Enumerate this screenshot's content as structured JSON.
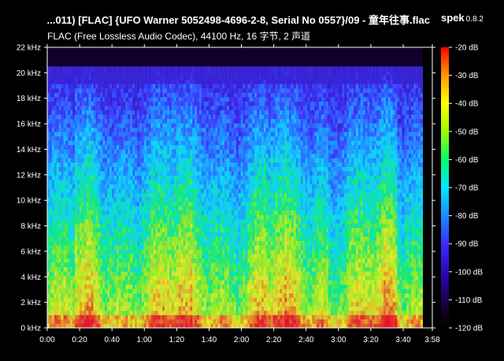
{
  "window": {
    "title": "...011) [FLAC] {UFO Warner 5052498-4696-2-8, Serial No 0557}/09 - 童年往事.flac",
    "app_name": "spek",
    "app_version": "0.8.2",
    "subtitle": "FLAC (Free Lossless Audio Codec), 44100 Hz, 16 字节, 2 声道"
  },
  "colors": {
    "background": "#000000",
    "text": "#ffffff",
    "palette": [
      "#000000",
      "#1a0033",
      "#2b00a8",
      "#3a2cff",
      "#1a8cff",
      "#00e5ff",
      "#00ff66",
      "#9cff00",
      "#ffff00",
      "#ff9900",
      "#ff2a00",
      "#ff0000"
    ]
  },
  "chart_data": {
    "type": "heatmap",
    "title": "",
    "xlabel": "",
    "ylabel": "",
    "x_ticks": [
      "0:00",
      "0:20",
      "0:40",
      "1:00",
      "1:20",
      "1:40",
      "2:00",
      "2:20",
      "2:40",
      "3:00",
      "3:20",
      "3:40",
      "3:58"
    ],
    "x_tick_seconds": [
      0,
      20,
      40,
      60,
      80,
      100,
      120,
      140,
      160,
      180,
      200,
      220,
      238
    ],
    "xlim_seconds": [
      0,
      238
    ],
    "y_ticks": [
      "0 kHz",
      "2 kHz",
      "4 kHz",
      "6 kHz",
      "8 kHz",
      "10 kHz",
      "12 kHz",
      "14 kHz",
      "16 kHz",
      "18 kHz",
      "20 kHz",
      "22 kHz"
    ],
    "y_tick_khz": [
      0,
      2,
      4,
      6,
      8,
      10,
      12,
      14,
      16,
      18,
      20,
      22
    ],
    "ylim_khz": [
      0,
      22
    ],
    "colorbar_ticks": [
      "-20 dB",
      "-30 dB",
      "-40 dB",
      "-50 dB",
      "-60 dB",
      "-70 dB",
      "-80 dB",
      "-90 dB",
      "-100 dB",
      "-110 dB",
      "-120 dB"
    ],
    "colorbar_db": [
      -20,
      -30,
      -40,
      -50,
      -60,
      -70,
      -80,
      -90,
      -100,
      -110,
      -120
    ],
    "colorbar_range_db": [
      -120,
      -20
    ],
    "signal_end_seconds": 232,
    "lowpass_khz": 20.5
  }
}
